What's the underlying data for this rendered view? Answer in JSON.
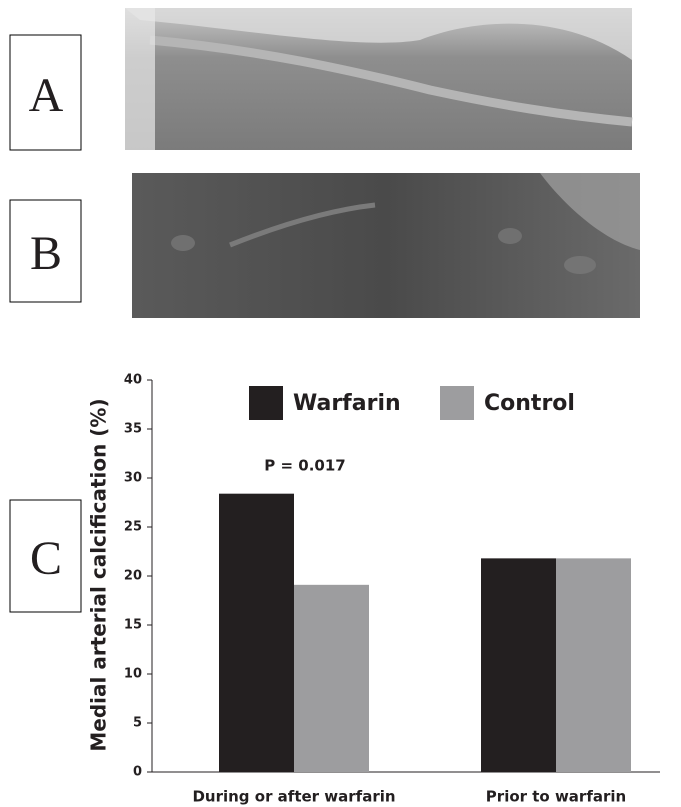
{
  "panel_labels": [
    "A",
    "B",
    "C"
  ],
  "chart_data": {
    "type": "bar",
    "y_label": "Medial arterial calcification (%)",
    "annotation": "P = 0.017",
    "categories": [
      "During or after warfarin",
      "Prior to warfarin"
    ],
    "series": [
      {
        "name": "Warfarin",
        "color": "#231f20",
        "values": [
          28.4,
          21.8
        ]
      },
      {
        "name": "Control",
        "color": "#9d9d9f",
        "values": [
          19.1,
          21.8
        ]
      }
    ],
    "ylim": [
      0,
      40
    ],
    "yticks": [
      0,
      5,
      10,
      15,
      20,
      25,
      30,
      35,
      40
    ],
    "grid": false
  }
}
